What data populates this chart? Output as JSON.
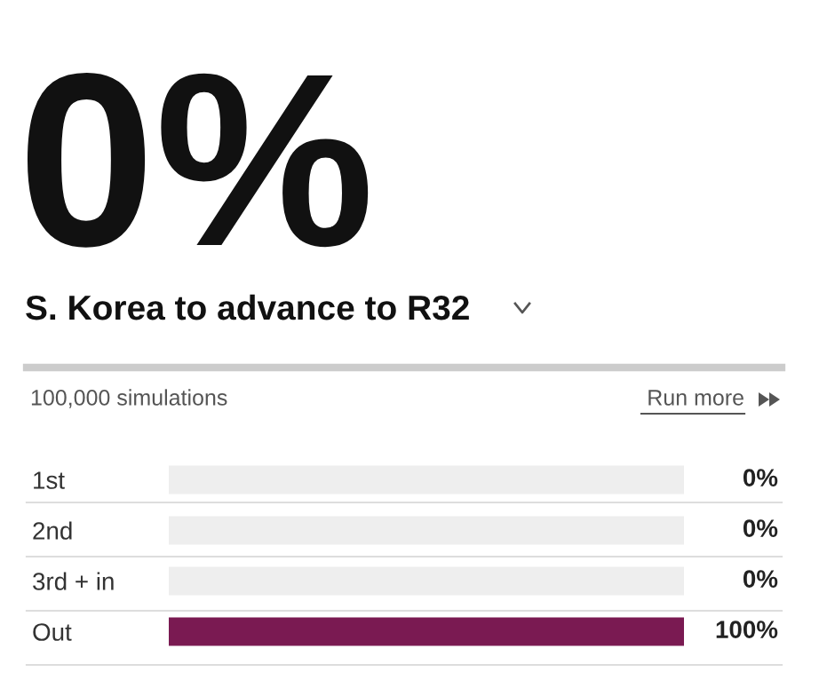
{
  "chart_data": {
    "type": "bar",
    "orientation": "horizontal",
    "stacked": true,
    "title": "S. Korea to advance to R32",
    "annotations": [
      "0%",
      "100,000 simulations",
      "Run more"
    ],
    "categories": [
      "1st",
      "2nd",
      "3rd + in",
      "Out"
    ],
    "series": [
      {
        "color": "#7a1a52",
        "values": [
          0,
          0,
          0,
          100
        ],
        "value_labels": [
          "0%",
          "0%",
          "0%",
          "100%"
        ]
      },
      {
        "color": "#eeeeee",
        "values": [
          100,
          100,
          100,
          0
        ]
      }
    ],
    "tick_labels": "y"
  }
}
